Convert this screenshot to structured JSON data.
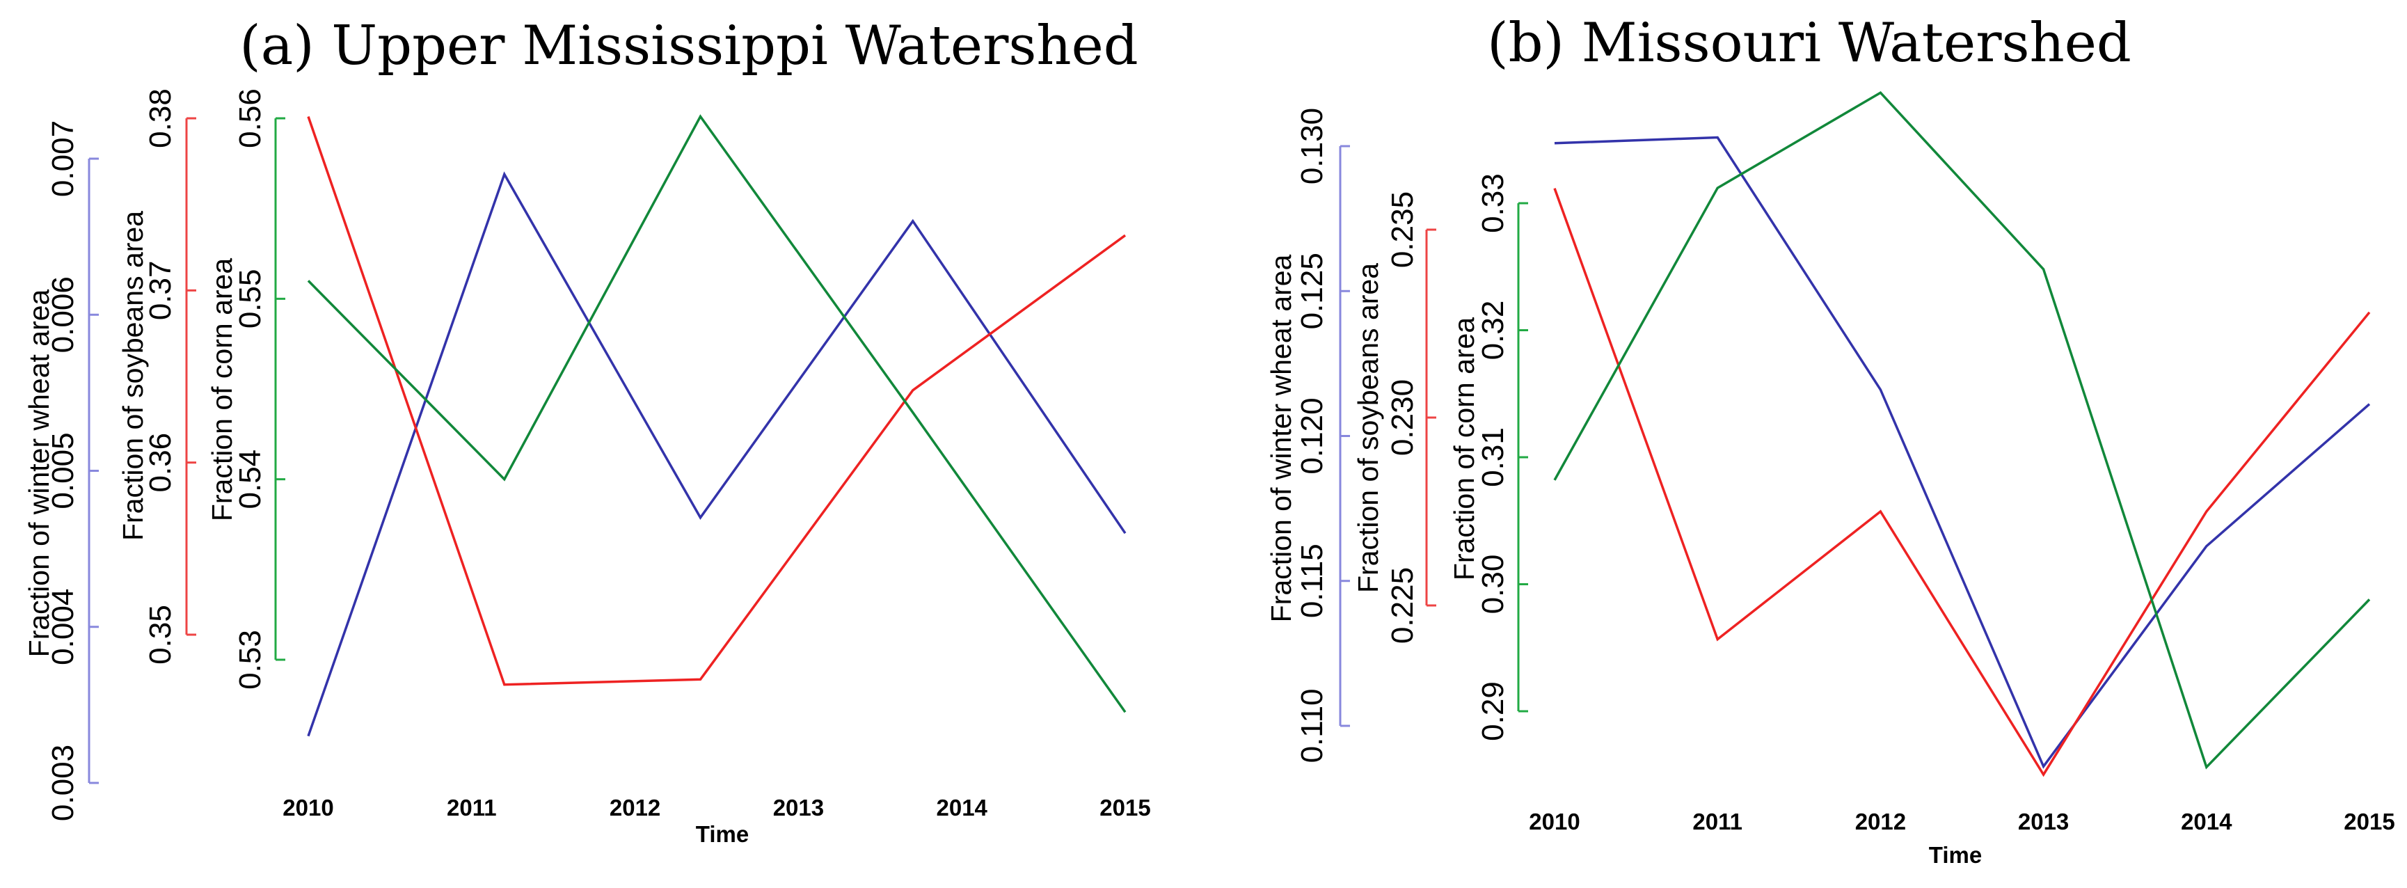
{
  "chart_data": [
    {
      "type": "line",
      "title": "(a) Upper Mississippi Watershed",
      "xlabel": "Time",
      "x": [
        2010,
        2011,
        2012,
        2013,
        2014,
        2015
      ],
      "x_ticks": [
        "2010",
        "2011",
        "2012",
        "2013",
        "2014",
        "2015"
      ],
      "grid": false,
      "legend": "none",
      "series": [
        {
          "color": "#3333aa",
          "x": [
            2010,
            2011.2,
            2012.4,
            2013.7,
            2015
          ],
          "values": [
            0.0033,
            0.0069,
            0.0047,
            0.0066,
            0.0046
          ]
        },
        {
          "color": "#ee2222",
          "x": [
            2010,
            2011.2,
            2012.4,
            2013.7,
            2015
          ],
          "values": [
            0.3801,
            0.3471,
            0.3474,
            0.3642,
            0.3732
          ]
        },
        {
          "color": "#11883a",
          "x": [
            2010,
            2011.2,
            2012.4,
            2013.7,
            2015
          ],
          "values": [
            0.551,
            0.54,
            0.5601,
            0.5437,
            0.5271
          ]
        }
      ],
      "axes": [
        {
          "label": "Fraction of winter wheat area",
          "color": "#8888dd",
          "ylim": [
            0.003,
            0.007
          ],
          "ticks": [
            "0.003",
            "0.004",
            "0.005",
            "0.006",
            "0.007"
          ]
        },
        {
          "label": "Fraction of soybeans area",
          "color": "#ee4444",
          "ylim": [
            0.35,
            0.38
          ],
          "ticks": [
            "0.35",
            "0.36",
            "0.37",
            "0.38"
          ]
        },
        {
          "label": "Fraction of corn area",
          "color": "#22aa44",
          "ylim": [
            0.53,
            0.56
          ],
          "ticks": [
            "0.53",
            "0.54",
            "0.55",
            "0.56"
          ]
        }
      ]
    },
    {
      "type": "line",
      "title": "(b) Missouri Watershed",
      "xlabel": "Time",
      "x": [
        2010,
        2011,
        2012,
        2013,
        2014,
        2015
      ],
      "x_ticks": [
        "2010",
        "2011",
        "2012",
        "2013",
        "2014",
        "2015"
      ],
      "grid": false,
      "legend": "none",
      "series": [
        {
          "color": "#3333aa",
          "x": [
            2010,
            2011,
            2012,
            2013,
            2014,
            2015
          ],
          "values": [
            0.1301,
            0.1303,
            0.1216,
            0.1086,
            0.1162,
            0.1211
          ]
        },
        {
          "color": "#ee2222",
          "x": [
            2010,
            2011,
            2012,
            2013,
            2014,
            2015
          ],
          "values": [
            0.2361,
            0.2241,
            0.2275,
            0.2205,
            0.2275,
            0.2328
          ]
        },
        {
          "color": "#11883a",
          "x": [
            2010,
            2011,
            2012,
            2013,
            2014,
            2015
          ],
          "values": [
            0.3082,
            0.3312,
            0.3387,
            0.3248,
            0.2856,
            0.2988
          ]
        }
      ],
      "axes": [
        {
          "label": "Fraction of winter wheat area",
          "color": "#8888dd",
          "ylim": [
            0.11,
            0.13
          ],
          "ticks": [
            "0.110",
            "0.115",
            "0.120",
            "0.125",
            "0.130"
          ]
        },
        {
          "label": "Fraction of soybeans area",
          "color": "#ee4444",
          "ylim": [
            0.225,
            0.235
          ],
          "ticks": [
            "0.225",
            "0.230",
            "0.235"
          ]
        },
        {
          "label": "Fraction of corn area",
          "color": "#22aa44",
          "ylim": [
            0.29,
            0.33
          ],
          "ticks": [
            "0.29",
            "0.30",
            "0.31",
            "0.32",
            "0.33"
          ]
        }
      ]
    }
  ]
}
